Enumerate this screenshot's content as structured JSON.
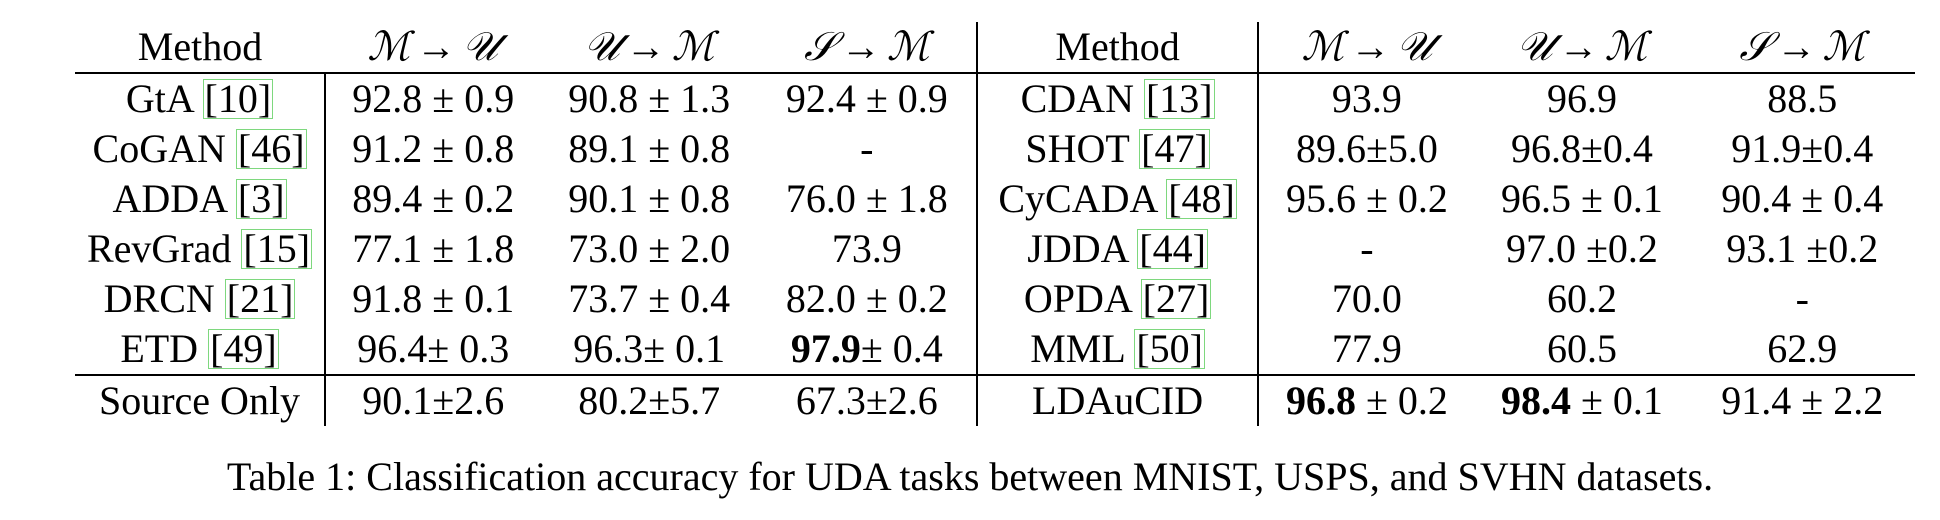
{
  "table": {
    "headers_left": {
      "method": "Method",
      "col1": {
        "src": "ℳ",
        "tgt": "𝒰",
        "arrow": "→"
      },
      "col2": {
        "src": "𝒰",
        "tgt": "ℳ",
        "arrow": "→"
      },
      "col3": {
        "src": "𝒮",
        "tgt": "ℳ",
        "arrow": "→"
      }
    },
    "headers_right": {
      "method": "Method",
      "col1": {
        "src": "ℳ",
        "tgt": "𝒰",
        "arrow": "→"
      },
      "col2": {
        "src": "𝒰",
        "tgt": "ℳ",
        "arrow": "→"
      },
      "col3": {
        "src": "𝒮",
        "tgt": "ℳ",
        "arrow": "→"
      }
    },
    "rows": [
      {
        "l_name": "GtA",
        "l_cite": "[10]",
        "l1": "92.8 ± 0.9",
        "l2": "90.8 ± 1.3",
        "l3": "92.4 ± 0.9",
        "r_name": "CDAN",
        "r_cite": "[13]",
        "r1": "93.9",
        "r2": "96.9",
        "r3": "88.5"
      },
      {
        "l_name": "CoGAN",
        "l_cite": "[46]",
        "l1": "91.2 ± 0.8",
        "l2": "89.1 ± 0.8",
        "l3": "-",
        "r_name": "SHOT",
        "r_cite": "[47]",
        "r1": "89.6±5.0",
        "r2": "96.8±0.4",
        "r3": "91.9±0.4"
      },
      {
        "l_name": "ADDA",
        "l_cite": "[3]",
        "l1": "89.4 ± 0.2",
        "l2": "90.1 ± 0.8",
        "l3": "76.0 ± 1.8",
        "r_name": "CyCADA",
        "r_cite": "[48]",
        "r1": "95.6 ± 0.2",
        "r2": "96.5 ± 0.1",
        "r3": "90.4 ± 0.4"
      },
      {
        "l_name": "RevGrad",
        "l_cite": "[15]",
        "l1": "77.1 ± 1.8",
        "l2": "73.0 ± 2.0",
        "l3": "73.9",
        "r_name": "JDDA",
        "r_cite": "[44]",
        "r1": "-",
        "r2": "97.0 ±0.2",
        "r3": "93.1 ±0.2"
      },
      {
        "l_name": "DRCN",
        "l_cite": "[21]",
        "l1": "91.8 ± 0.1",
        "l2": "73.7 ± 0.4",
        "l3": "82.0 ± 0.2",
        "r_name": "OPDA",
        "r_cite": "[27]",
        "r1": "70.0",
        "r2": "60.2",
        "r3": "-"
      },
      {
        "l_name": "ETD",
        "l_cite": "[49]",
        "l1": "96.4± 0.3",
        "l2": "96.3± 0.1",
        "l3_bold": "97.9",
        "l3_rest": "± 0.4",
        "r_name": "MML",
        "r_cite": "[50]",
        "r1": "77.9",
        "r2": "60.5",
        "r3": "62.9"
      }
    ],
    "last_row": {
      "l_name": "Source Only",
      "l1": "90.1±2.6",
      "l2": "80.2±5.7",
      "l3": "67.3±2.6",
      "r_name": "LDAuCID",
      "r1_bold": "96.8",
      "r1_rest": "± 0.2",
      "r2_bold": "98.4",
      "r2_rest": "± 0.1",
      "r3": "91.4 ± 2.2"
    }
  },
  "caption": "Table 1: Classification accuracy for UDA tasks between MNIST, USPS, and SVHN datasets.",
  "colors": {
    "text": "#000000",
    "citation_box": "#7ed87e"
  }
}
